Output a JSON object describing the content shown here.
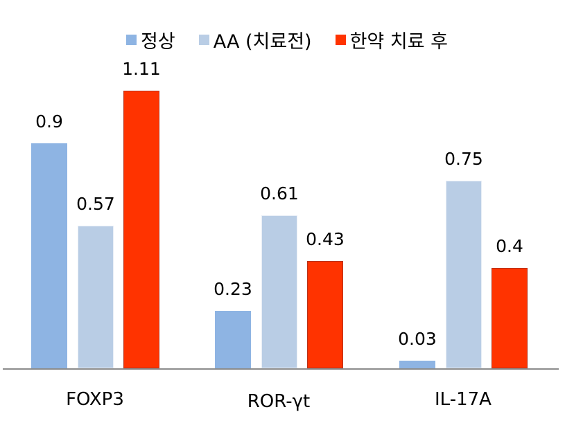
{
  "chart_data": {
    "type": "bar",
    "title": "",
    "xlabel": "",
    "ylabel": "",
    "ylim": [
      0,
      1.11
    ],
    "grid": false,
    "legend_position": "top",
    "categories": [
      "FOXP3",
      "ROR-γt",
      "IL-17A"
    ],
    "series": [
      {
        "name": "정상",
        "color": "#8eb4e3",
        "values": [
          0.9,
          0.23,
          0.03
        ],
        "labels": [
          "0.9",
          "0.23",
          "0.03"
        ]
      },
      {
        "name": "AA (치료전)",
        "color": "#b9cde5",
        "values": [
          0.57,
          0.61,
          0.75
        ],
        "labels": [
          "0.57",
          "0.61",
          "0.75"
        ]
      },
      {
        "name": "한약 치료 후",
        "color": "#ff3300",
        "values": [
          1.11,
          0.43,
          0.4
        ],
        "labels": [
          "1.11",
          "0.43",
          "0.4"
        ]
      }
    ]
  }
}
